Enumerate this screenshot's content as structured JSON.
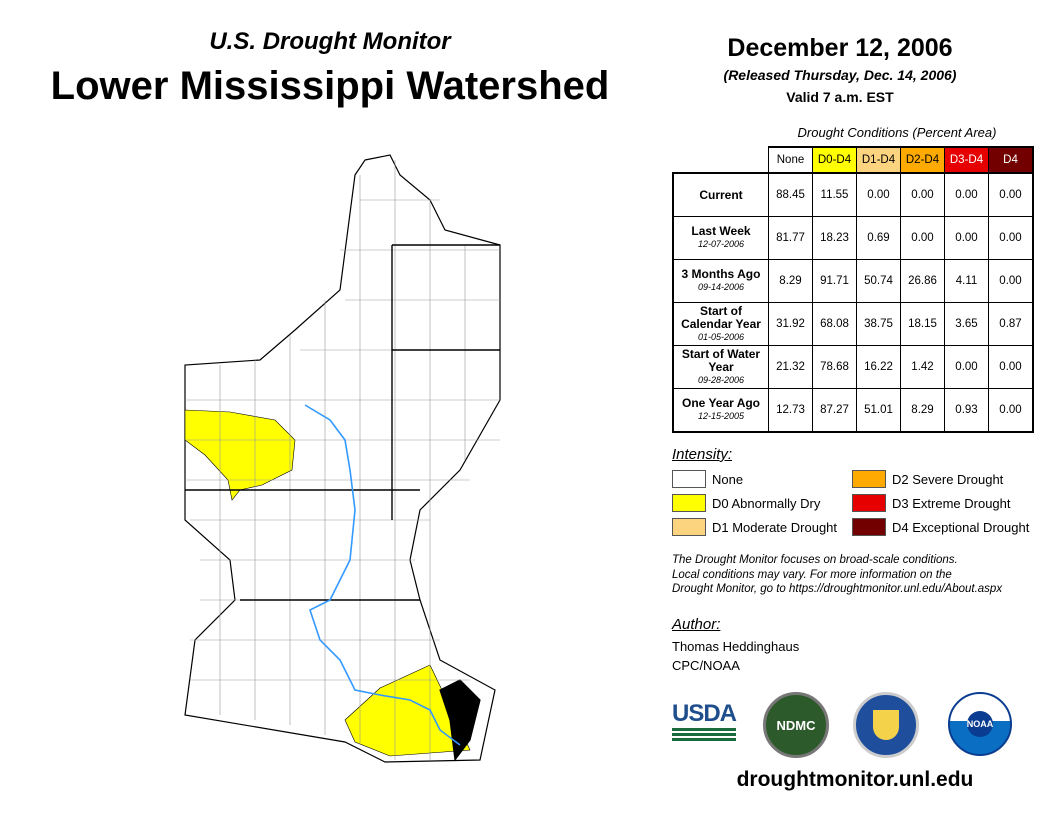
{
  "header": {
    "subtitle": "U.S. Drought Monitor",
    "title": "Lower Mississippi Watershed",
    "date": "December 12, 2006",
    "released": "(Released Thursday, Dec. 14, 2006)",
    "valid": "Valid 7 a.m. EST"
  },
  "table": {
    "caption": "Drought Conditions (Percent Area)",
    "columns": [
      {
        "label": "None",
        "color": "#ffffff",
        "text": "#000"
      },
      {
        "label": "D0-D4",
        "color": "#ffff00",
        "text": "#000"
      },
      {
        "label": "D1-D4",
        "color": "#fcd37f",
        "text": "#000"
      },
      {
        "label": "D2-D4",
        "color": "#ffaa00",
        "text": "#000"
      },
      {
        "label": "D3-D4",
        "color": "#e60000",
        "text": "#fff"
      },
      {
        "label": "D4",
        "color": "#730000",
        "text": "#fff"
      }
    ],
    "rows": [
      {
        "label": "Current",
        "date": "",
        "values": [
          "88.45",
          "11.55",
          "0.00",
          "0.00",
          "0.00",
          "0.00"
        ]
      },
      {
        "label": "Last Week",
        "date": "12-07-2006",
        "values": [
          "81.77",
          "18.23",
          "0.69",
          "0.00",
          "0.00",
          "0.00"
        ]
      },
      {
        "label": "3 Months Ago",
        "date": "09-14-2006",
        "values": [
          "8.29",
          "91.71",
          "50.74",
          "26.86",
          "4.11",
          "0.00"
        ]
      },
      {
        "label": "Start of Calendar Year",
        "date": "01-05-2006",
        "values": [
          "31.92",
          "68.08",
          "38.75",
          "18.15",
          "3.65",
          "0.87"
        ]
      },
      {
        "label": "Start of Water Year",
        "date": "09-28-2006",
        "values": [
          "21.32",
          "78.68",
          "16.22",
          "1.42",
          "0.00",
          "0.00"
        ]
      },
      {
        "label": "One Year Ago",
        "date": "12-15-2005",
        "values": [
          "12.73",
          "87.27",
          "51.01",
          "8.29",
          "0.93",
          "0.00"
        ]
      }
    ]
  },
  "legend": {
    "title": "Intensity:",
    "items": [
      {
        "label": "None",
        "color": "#ffffff"
      },
      {
        "label": "D0 Abnormally Dry",
        "color": "#ffff00"
      },
      {
        "label": "D1 Moderate Drought",
        "color": "#fcd37f"
      },
      {
        "label": "D2 Severe Drought",
        "color": "#ffaa00"
      },
      {
        "label": "D3 Extreme Drought",
        "color": "#e60000"
      },
      {
        "label": "D4 Exceptional Drought",
        "color": "#730000"
      }
    ]
  },
  "note": [
    "The Drought Monitor focuses on broad-scale conditions.",
    "Local conditions may vary. For more information on the",
    "Drought Monitor, go to https://droughtmonitor.unl.edu/About.aspx"
  ],
  "author": {
    "heading": "Author:",
    "name": "Thomas Heddinghaus",
    "org": "CPC/NOAA"
  },
  "logos": {
    "usda": "USDA",
    "ndmc": "NDMC",
    "noaa": "NOAA"
  },
  "footer_url": "droughtmonitor.unl.edu"
}
